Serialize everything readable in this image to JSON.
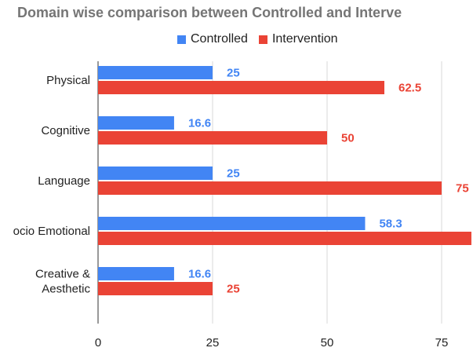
{
  "chart_data": {
    "type": "bar",
    "orientation": "horizontal",
    "title": "Domain wise comparison between Controlled and Interve",
    "categories": [
      "Physical",
      "Cognitive",
      "Language",
      "Socio Emotional",
      "Creative & Aesthetic"
    ],
    "category_lines": [
      [
        "Physical"
      ],
      [
        "Cognitive"
      ],
      [
        "Language"
      ],
      [
        "ocio Emotional"
      ],
      [
        "Creative &",
        "Aesthetic"
      ]
    ],
    "series": [
      {
        "name": "Controlled",
        "color": "#4285f4",
        "values": [
          25,
          16.6,
          25,
          58.3,
          16.6
        ],
        "labels": [
          "25",
          "16.6",
          "25",
          "58.3",
          "16.6"
        ]
      },
      {
        "name": "Intervention",
        "color": "#ea4335",
        "values": [
          62.5,
          50,
          75,
          81.5,
          25
        ],
        "labels": [
          "62.5",
          "50",
          "75",
          "",
          "25"
        ]
      }
    ],
    "xlim": [
      0,
      82
    ],
    "xticks": [
      0,
      25,
      50,
      75
    ],
    "xlabel": "",
    "ylabel": "",
    "grid": true,
    "legend_position": "top"
  }
}
